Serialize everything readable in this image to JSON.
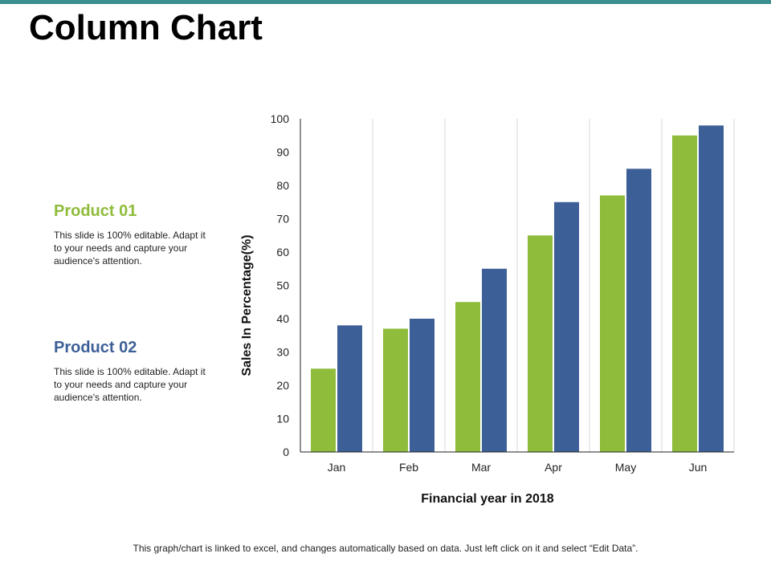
{
  "page": {
    "title": "Column Chart",
    "footer": "This graph/chart is linked to excel, and changes automatically based on data. Just left click on it and select “Edit Data”.",
    "accent_color": "#3a8f8f"
  },
  "products": [
    {
      "title": "Product 01",
      "color": "#8fbc3a",
      "description": "This slide is 100% editable. Adapt it to your needs and capture your audience's attention."
    },
    {
      "title": "Product 02",
      "color": "#3d5f97",
      "description": "This slide is 100% editable. Adapt it to your needs and capture your audience's attention."
    }
  ],
  "chart_data": {
    "type": "bar",
    "title": "",
    "xlabel": "Financial year in 2018",
    "ylabel": "Sales In Percentage(%)",
    "categories": [
      "Jan",
      "Feb",
      "Mar",
      "Apr",
      "May",
      "Jun"
    ],
    "series": [
      {
        "color": "#8fbc3a",
        "values": [
          25,
          37,
          45,
          65,
          77,
          95
        ]
      },
      {
        "color": "#3d5f97",
        "values": [
          38,
          40,
          55,
          75,
          85,
          98
        ]
      }
    ],
    "ylim": [
      0,
      100
    ],
    "yticks": [
      0,
      10,
      20,
      30,
      40,
      50,
      60,
      70,
      80,
      90,
      100
    ],
    "grid": "vertical",
    "legend": "none"
  }
}
